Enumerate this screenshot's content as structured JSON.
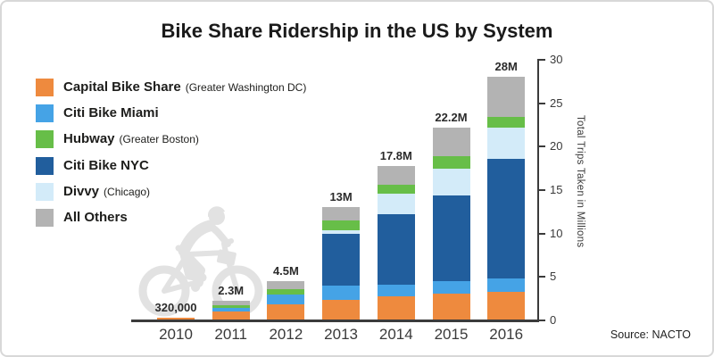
{
  "card": {
    "title": "Bike Share Ridership in the US by System",
    "source": "Source: NACTO"
  },
  "legend": {
    "items": [
      {
        "label": "Capital Bike Share",
        "sublabel": "(Greater Washington DC)",
        "color": "#ee8a3e"
      },
      {
        "label": "Citi Bike Miami",
        "sublabel": "",
        "color": "#45a3e6"
      },
      {
        "label": "Hubway",
        "sublabel": "(Greater Boston)",
        "color": "#67be48"
      },
      {
        "label": "Citi Bike NYC",
        "sublabel": "",
        "color": "#215e9d"
      },
      {
        "label": "Divvy",
        "sublabel": "(Chicago)",
        "color": "#d3ebf9"
      },
      {
        "label": "All Others",
        "sublabel": "",
        "color": "#b3b3b3"
      }
    ]
  },
  "chart_data": {
    "type": "bar",
    "stacked": true,
    "title": "Bike Share Ridership in the US by System",
    "categories": [
      "2010",
      "2011",
      "2012",
      "2013",
      "2014",
      "2015",
      "2016"
    ],
    "totals_labels": [
      "320,000",
      "2.3M",
      "4.5M",
      "13M",
      "17.8M",
      "22.2M",
      "28M"
    ],
    "totals_millions": [
      0.32,
      2.3,
      4.5,
      13,
      17.8,
      22.2,
      28
    ],
    "series": [
      {
        "name": "Capital Bike Share (Greater Washington DC)",
        "color": "#ee8a3e",
        "values": [
          0.32,
          1.05,
          1.85,
          2.4,
          2.8,
          3.1,
          3.3
        ]
      },
      {
        "name": "Citi Bike Miami",
        "color": "#45a3e6",
        "values": [
          0,
          0.35,
          1.1,
          1.6,
          1.3,
          1.4,
          1.5
        ]
      },
      {
        "name": "Citi Bike NYC",
        "color": "#215e9d",
        "values": [
          0,
          0,
          0,
          6.0,
          8.1,
          9.9,
          13.8
        ]
      },
      {
        "name": "Divvy (Chicago)",
        "color": "#d3ebf9",
        "values": [
          0,
          0,
          0,
          0.35,
          2.4,
          3.1,
          3.6
        ]
      },
      {
        "name": "Hubway (Greater Boston)",
        "color": "#67be48",
        "values": [
          0,
          0.35,
          0.65,
          1.15,
          1.0,
          1.4,
          1.2
        ]
      },
      {
        "name": "All Others",
        "color": "#b3b3b3",
        "values": [
          0,
          0.55,
          0.9,
          1.5,
          2.2,
          3.3,
          4.6
        ]
      }
    ],
    "xlabel": "",
    "ylabel": "Total Trips Taken in Millions",
    "yticks": [
      0,
      5,
      10,
      15,
      20,
      25,
      30
    ],
    "ylim": [
      0,
      30
    ],
    "axis_side": "right",
    "grid": false,
    "legend_position": "upper-left"
  }
}
